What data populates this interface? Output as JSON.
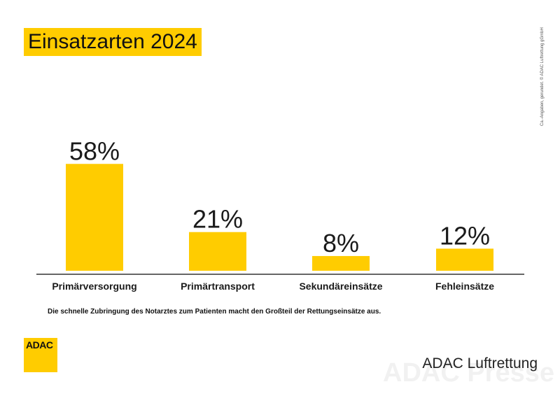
{
  "title": "Einsatzarten 2024",
  "caption": "Die schnelle Zubringung des Notarztes zum Patienten macht den Großteil der Rettungseinsätze aus.",
  "copyright": "Ca.-Angaben, gerundet. © ADAC Luftrettung gGmbH",
  "logo_text": "ADAC",
  "brand": "ADAC Luftrettung",
  "watermark": "ADAC Presse",
  "colors": {
    "accent": "#ffcc00",
    "text": "#1a1a1a",
    "axis": "#333333"
  },
  "chart_data": {
    "type": "bar",
    "title": "Einsatzarten 2024",
    "categories": [
      "Primärversorgung",
      "Primärtransport",
      "Sekundäreinsätze",
      "Fehleinsätze"
    ],
    "values": [
      58,
      21,
      8,
      12
    ],
    "value_labels": [
      "58%",
      "21%",
      "8%",
      "12%"
    ],
    "unit": "%",
    "ylim": [
      0,
      60
    ],
    "grid": false,
    "legend": "none",
    "xlabel": "",
    "ylabel": ""
  }
}
